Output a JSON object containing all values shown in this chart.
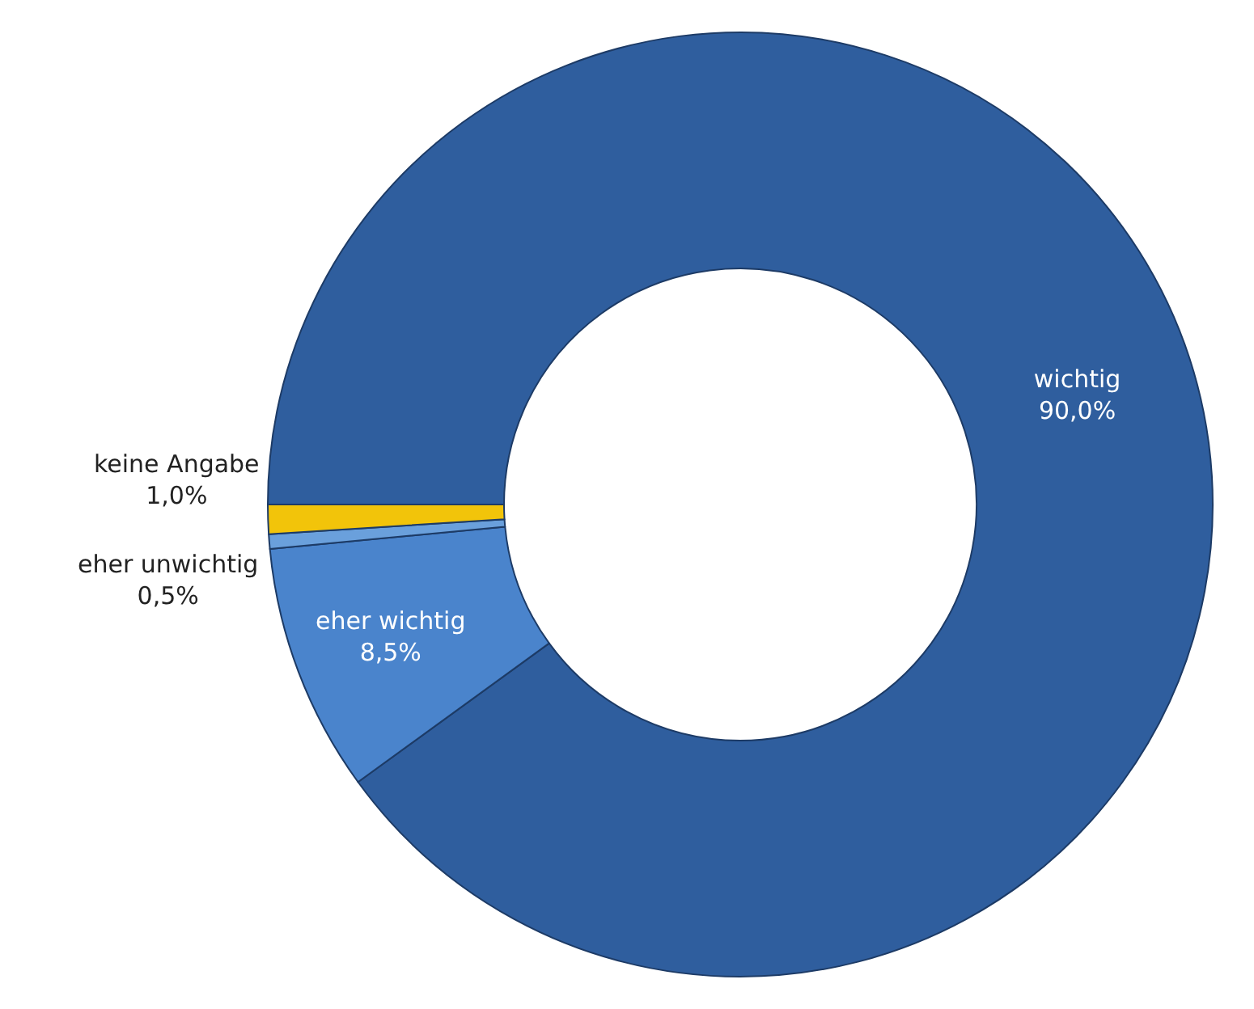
{
  "chart_data": {
    "type": "donut",
    "categories": [
      "wichtig",
      "eher wichtig",
      "eher unwichtig",
      "keine Angabe"
    ],
    "values": [
      90.0,
      8.5,
      0.5,
      1.0
    ],
    "value_labels": [
      "90,0%",
      "8,5%",
      "0,5%",
      "1,0%"
    ],
    "colors": [
      "#2f5e9e",
      "#4a84cc",
      "#6aa0dc",
      "#f2c40a"
    ],
    "legend": false
  }
}
